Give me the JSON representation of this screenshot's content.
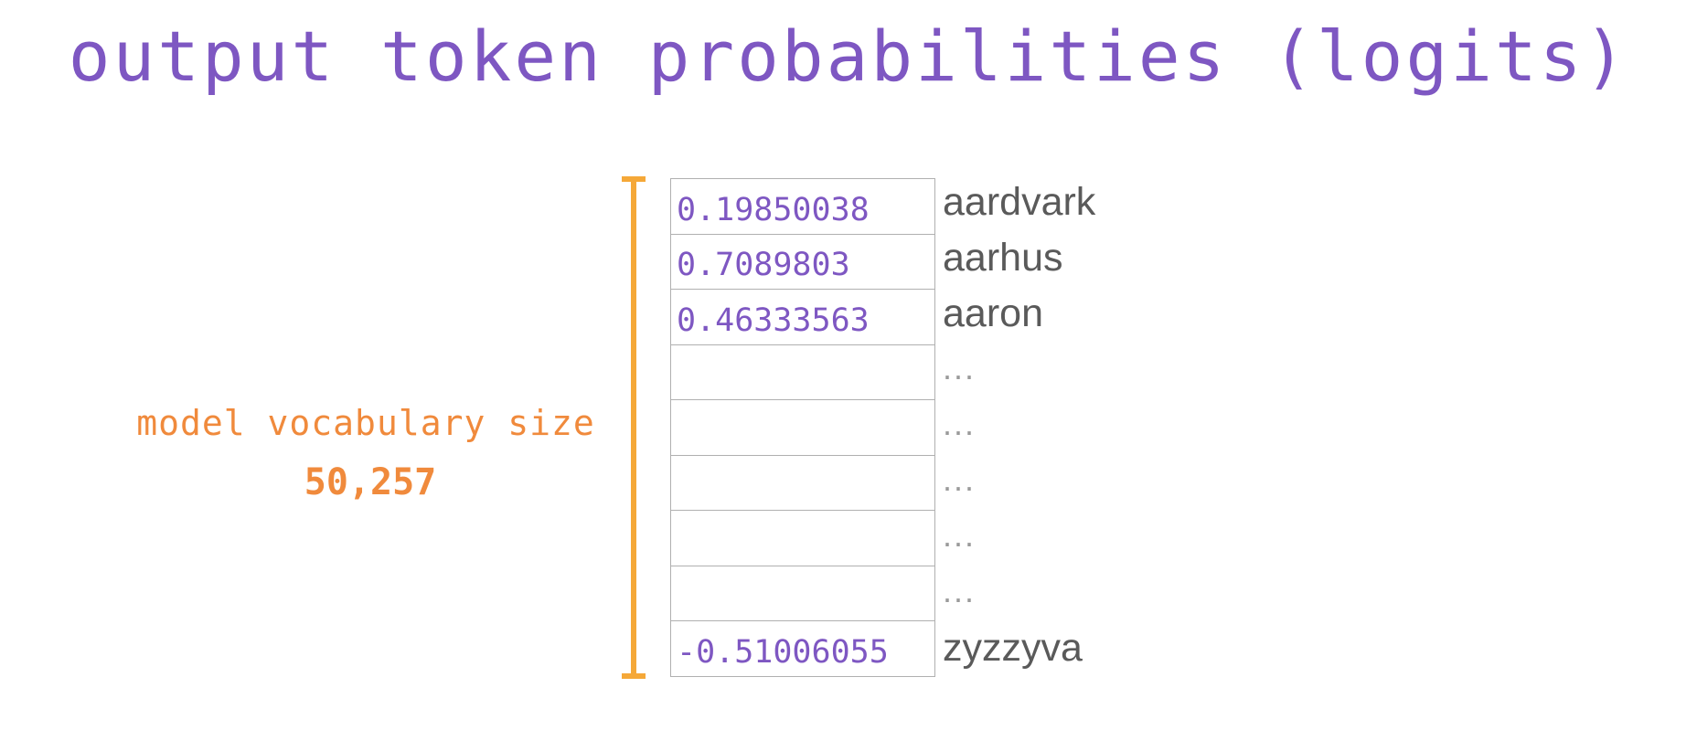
{
  "title": "output token probabilities (logits)",
  "vocab": {
    "label": "model vocabulary size",
    "count": "50,257"
  },
  "rows": [
    {
      "value": "0.19850038",
      "token": "aardvark"
    },
    {
      "value": "0.7089803",
      "token": "aarhus"
    },
    {
      "value": "0.46333563",
      "token": "aaron"
    },
    {
      "value": "",
      "token": "..."
    },
    {
      "value": "",
      "token": "..."
    },
    {
      "value": "",
      "token": "..."
    },
    {
      "value": "",
      "token": "..."
    },
    {
      "value": "",
      "token": "..."
    },
    {
      "value": "-0.51006055",
      "token": "zyzzyva"
    }
  ],
  "colors": {
    "title": "#7e57c2",
    "values": "#7e57c2",
    "label": "#f08a3c",
    "bracket": "#f5a838",
    "tokens": "#5a5a5a",
    "grid": "#b0b0b0"
  }
}
